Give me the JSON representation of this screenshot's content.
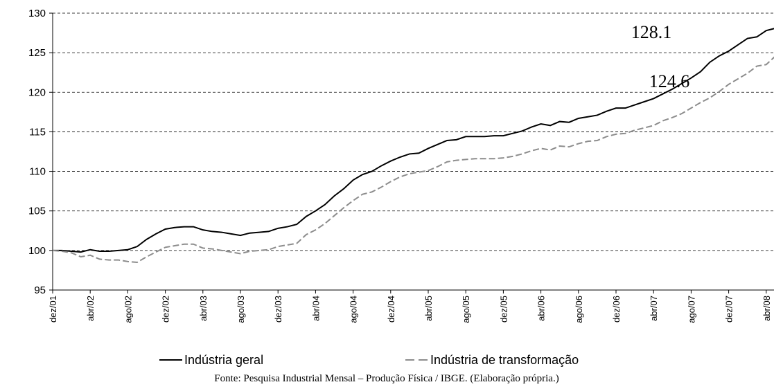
{
  "chart_data": {
    "type": "line",
    "categories": [
      "dez/01",
      null,
      null,
      null,
      "abr/02",
      null,
      null,
      null,
      "ago/02",
      null,
      null,
      null,
      "dez/02",
      null,
      null,
      null,
      "abr/03",
      null,
      null,
      null,
      "ago/03",
      null,
      null,
      null,
      "dez/03",
      null,
      null,
      null,
      "abr/04",
      null,
      null,
      null,
      "ago/04",
      null,
      null,
      null,
      "dez/04",
      null,
      null,
      null,
      "abr/05",
      null,
      null,
      null,
      "ago/05",
      null,
      null,
      null,
      "dez/05",
      null,
      null,
      null,
      "abr/06",
      null,
      null,
      null,
      "ago/06",
      null,
      null,
      null,
      "dez/06",
      null,
      null,
      null,
      "abr/07",
      null,
      null,
      null,
      "ago/07",
      null,
      null,
      null,
      "dez/07",
      null,
      null,
      null,
      "abr/08",
      null
    ],
    "series": [
      {
        "name": "Indústria geral",
        "color": "#000000",
        "dashed": false,
        "values": [
          100,
          100,
          99.9,
          99.8,
          100.1,
          99.9,
          99.9,
          100.0,
          100.1,
          100.5,
          101.4,
          102.1,
          102.7,
          102.9,
          103.0,
          103.0,
          102.6,
          102.4,
          102.3,
          102.1,
          101.9,
          102.2,
          102.3,
          102.4,
          102.8,
          103.0,
          103.3,
          104.3,
          105.0,
          105.8,
          106.9,
          107.8,
          108.9,
          109.6,
          110.0,
          110.7,
          111.3,
          111.8,
          112.2,
          112.3,
          112.9,
          113.4,
          113.9,
          114.0,
          114.4,
          114.4,
          114.4,
          114.5,
          114.5,
          114.8,
          115.1,
          115.6,
          116.0,
          115.8,
          116.3,
          116.2,
          116.7,
          116.9,
          117.1,
          117.6,
          118.0,
          118.0,
          118.4,
          118.8,
          119.2,
          119.8,
          120.4,
          121.1,
          121.8,
          122.6,
          123.8,
          124.6,
          125.2,
          126.0,
          126.8,
          127.0,
          127.8,
          128.1
        ]
      },
      {
        "name": "Indústria de transformação",
        "color": "#8c8c8c",
        "dashed": true,
        "values": [
          100,
          99.9,
          99.7,
          99.2,
          99.4,
          98.9,
          98.8,
          98.8,
          98.6,
          98.5,
          99.2,
          99.8,
          100.4,
          100.6,
          100.8,
          100.8,
          100.3,
          100.2,
          100.0,
          99.8,
          99.6,
          99.9,
          100.0,
          100.1,
          100.5,
          100.7,
          100.9,
          102.0,
          102.6,
          103.4,
          104.4,
          105.4,
          106.3,
          107.1,
          107.4,
          108.0,
          108.7,
          109.3,
          109.7,
          109.9,
          110.1,
          110.6,
          111.2,
          111.4,
          111.5,
          111.6,
          111.6,
          111.6,
          111.7,
          111.9,
          112.2,
          112.6,
          112.9,
          112.7,
          113.2,
          113.1,
          113.5,
          113.8,
          113.9,
          114.4,
          114.7,
          114.8,
          115.2,
          115.5,
          115.8,
          116.4,
          116.8,
          117.3,
          118.0,
          118.7,
          119.3,
          120.1,
          121.0,
          121.7,
          122.4,
          123.3,
          123.5,
          124.6
        ]
      }
    ],
    "ylim": [
      95,
      130
    ],
    "yticks": [
      95,
      100,
      105,
      110,
      115,
      120,
      125,
      130
    ],
    "grid": true,
    "annotations": [
      {
        "text": "128.1"
      },
      {
        "text": "124.6"
      }
    ],
    "source": "Fonte: Pesquisa Industrial Mensal – Produção Física / IBGE. (Elaboração própria.)"
  }
}
